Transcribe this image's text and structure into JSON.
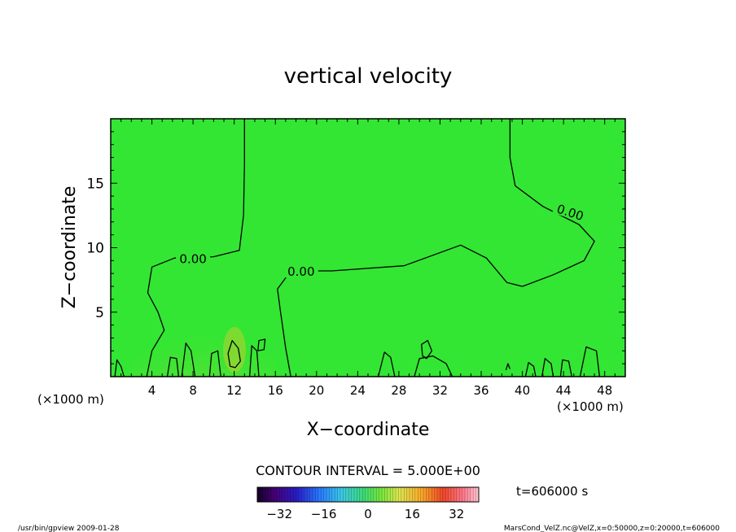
{
  "chart_data": {
    "type": "heatmap",
    "title": "vertical velocity",
    "xlabel": "X−coordinate",
    "ylabel": "Z−coordinate",
    "x_unit_left": "(×1000 m)",
    "x_unit_right": "(×1000 m)",
    "xlim": [
      0,
      50
    ],
    "ylim": [
      0,
      20
    ],
    "x_ticks": [
      4,
      8,
      12,
      16,
      20,
      24,
      28,
      32,
      36,
      40,
      44,
      48
    ],
    "y_ticks": [
      5,
      10,
      15
    ],
    "field_color": "#33e633",
    "contour_interval_label": "CONTOUR INTERVAL = 5.000E+00",
    "time_label": "t=606000 s",
    "colorbar_range": [
      -40,
      40
    ],
    "colorbar_ticks": [
      -32,
      -16,
      0,
      16,
      32
    ],
    "contour_label": "0.00",
    "contours": [
      {
        "label_at": [
          8,
          9.0
        ],
        "points": [
          [
            13,
            20
          ],
          [
            13,
            16.5
          ],
          [
            12.9,
            12.5
          ],
          [
            12.5,
            9.8
          ],
          [
            10.0,
            9.3
          ],
          [
            6.2,
            9.2
          ],
          [
            4.0,
            8.5
          ],
          [
            3.6,
            6.5
          ],
          [
            4.6,
            5.0
          ],
          [
            5.2,
            3.6
          ],
          [
            4.0,
            2.0
          ],
          [
            3.5,
            0
          ]
        ]
      },
      {
        "label_at": [
          18.5,
          8.0
        ],
        "points": [
          [
            17.5,
            0
          ],
          [
            17.0,
            2.2
          ],
          [
            16.5,
            5.0
          ],
          [
            16.2,
            6.8
          ],
          [
            17.5,
            8.2
          ],
          [
            21.5,
            8.2
          ],
          [
            28.5,
            8.6
          ],
          [
            34.0,
            10.2
          ],
          [
            36.5,
            9.2
          ],
          [
            38.5,
            7.3
          ],
          [
            40.0,
            7.0
          ],
          [
            43.0,
            7.9
          ],
          [
            46.0,
            9.0
          ],
          [
            47.0,
            10.5
          ],
          [
            45.5,
            11.8
          ],
          [
            42.0,
            13.2
          ],
          [
            39.3,
            14.8
          ],
          [
            38.8,
            17.0
          ],
          [
            38.8,
            20
          ]
        ]
      },
      {
        "points": [
          [
            11.6,
            0.8
          ],
          [
            11.4,
            1.8
          ],
          [
            11.8,
            2.8
          ],
          [
            12.4,
            2.2
          ],
          [
            12.6,
            1.2
          ],
          [
            12.1,
            0.7
          ],
          [
            11.6,
            0.8
          ]
        ]
      },
      {
        "points": [
          [
            30.3,
            1.6
          ],
          [
            30.2,
            2.5
          ],
          [
            30.8,
            2.8
          ],
          [
            31.2,
            2.0
          ],
          [
            30.7,
            1.4
          ],
          [
            30.3,
            1.6
          ]
        ]
      },
      {
        "points": [
          [
            14.3,
            2.0
          ],
          [
            14.4,
            2.8
          ],
          [
            15.0,
            2.9
          ],
          [
            14.9,
            2.1
          ],
          [
            14.3,
            2.0
          ]
        ]
      },
      {
        "points": [
          [
            0.4,
            0
          ],
          [
            0.6,
            1.3
          ],
          [
            1.0,
            0.8
          ],
          [
            1.3,
            0
          ]
        ]
      },
      {
        "points": [
          [
            5.5,
            0
          ],
          [
            5.8,
            1.5
          ],
          [
            6.4,
            1.4
          ],
          [
            6.6,
            0
          ]
        ]
      },
      {
        "points": [
          [
            6.9,
            0
          ],
          [
            7.3,
            2.6
          ],
          [
            7.8,
            2.0
          ],
          [
            8.2,
            0
          ]
        ]
      },
      {
        "points": [
          [
            9.6,
            0
          ],
          [
            9.8,
            1.8
          ],
          [
            10.4,
            2.0
          ],
          [
            10.7,
            0
          ]
        ]
      },
      {
        "points": [
          [
            13.5,
            0
          ],
          [
            13.7,
            2.4
          ],
          [
            14.2,
            2.0
          ],
          [
            14.4,
            0
          ]
        ]
      },
      {
        "points": [
          [
            26.0,
            0
          ],
          [
            26.6,
            1.9
          ],
          [
            27.2,
            1.5
          ],
          [
            27.6,
            0
          ]
        ]
      },
      {
        "points": [
          [
            29.5,
            0
          ],
          [
            30.0,
            1.4
          ],
          [
            31.3,
            1.6
          ],
          [
            32.6,
            1.0
          ],
          [
            33.2,
            0
          ]
        ]
      },
      {
        "points": [
          [
            38.4,
            0.5
          ],
          [
            38.6,
            1.0
          ],
          [
            38.8,
            0.6
          ]
        ]
      },
      {
        "points": [
          [
            40.3,
            0
          ],
          [
            40.6,
            1.1
          ],
          [
            41.1,
            0.8
          ],
          [
            41.3,
            0
          ]
        ]
      },
      {
        "points": [
          [
            41.9,
            0
          ],
          [
            42.2,
            1.4
          ],
          [
            42.8,
            1.0
          ],
          [
            43.0,
            0
          ]
        ]
      },
      {
        "points": [
          [
            43.7,
            0
          ],
          [
            43.9,
            1.3
          ],
          [
            44.5,
            1.2
          ],
          [
            44.8,
            0
          ]
        ]
      },
      {
        "points": [
          [
            45.6,
            0
          ],
          [
            46.2,
            2.3
          ],
          [
            47.2,
            2.0
          ],
          [
            47.5,
            0
          ]
        ]
      }
    ]
  },
  "footer": {
    "left": "/usr/bin/gpview   2009-01-28",
    "right": "MarsCond_VelZ.nc@VelZ,x=0:50000,z=0:20000,t=606000"
  }
}
